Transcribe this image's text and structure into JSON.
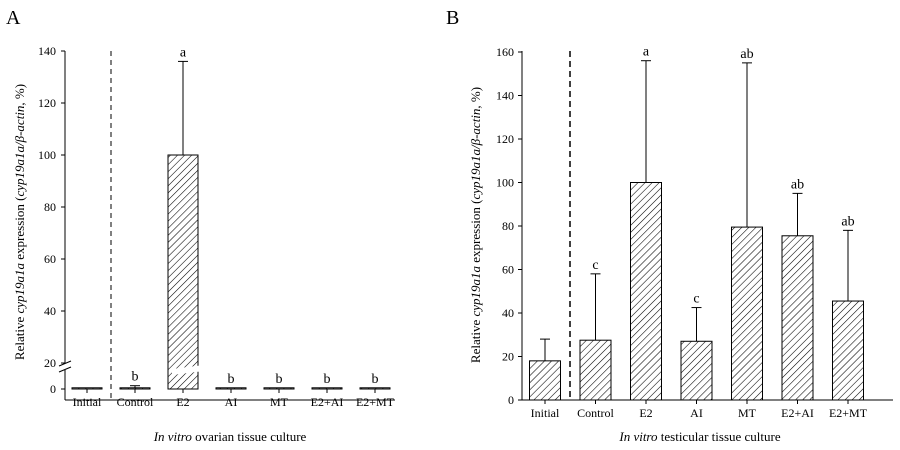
{
  "chart_data": [
    {
      "type": "bar",
      "panel_label": "A",
      "categories": [
        "Initial",
        "Control",
        "E2",
        "AI",
        "MT",
        "E2+AI",
        "E2+MT"
      ],
      "values": [
        0,
        1,
        100,
        0,
        0,
        1,
        1
      ],
      "errors": [
        0,
        2,
        36,
        0,
        0,
        0,
        0
      ],
      "significance": [
        "",
        "b",
        "a",
        "b",
        "b",
        "b",
        "b"
      ],
      "ylabel_parts": [
        "Relative ",
        "cyp19a1a",
        " expression (",
        "cyp19a1a/β-actin",
        ", %)"
      ],
      "xlabel_parts": [
        "In vitro",
        " ovarian tissue culture"
      ],
      "y_ticks_lower": [
        0
      ],
      "y_ticks_upper": [
        20,
        40,
        60,
        80,
        100,
        120,
        140
      ],
      "y_break": [
        0,
        20
      ],
      "ylim": [
        0,
        140
      ],
      "bar_fill": "hatched",
      "dashed_separator_after": "Initial"
    },
    {
      "type": "bar",
      "panel_label": "B",
      "categories": [
        "Initial",
        "Control",
        "E2",
        "AI",
        "MT",
        "E2+AI",
        "E2+MT"
      ],
      "values": [
        18,
        27.5,
        100,
        27,
        79.5,
        75.5,
        45.5
      ],
      "errors": [
        10,
        30.5,
        56,
        15.5,
        75.5,
        19.5,
        32.5
      ],
      "significance": [
        "",
        "c",
        "a",
        "c",
        "ab",
        "ab",
        "ab"
      ],
      "ylabel_parts": [
        "Relative ",
        "cyp19a1a",
        " expression (",
        "cyp19a1a/β-actin",
        ", %)"
      ],
      "xlabel_parts": [
        "In vitro",
        " testicular tissue culture"
      ],
      "y_ticks": [
        0,
        20,
        40,
        60,
        80,
        100,
        120,
        140,
        160
      ],
      "ylim": [
        0,
        160
      ],
      "bar_fill": "hatched",
      "dashed_separator_after": "Initial"
    }
  ]
}
